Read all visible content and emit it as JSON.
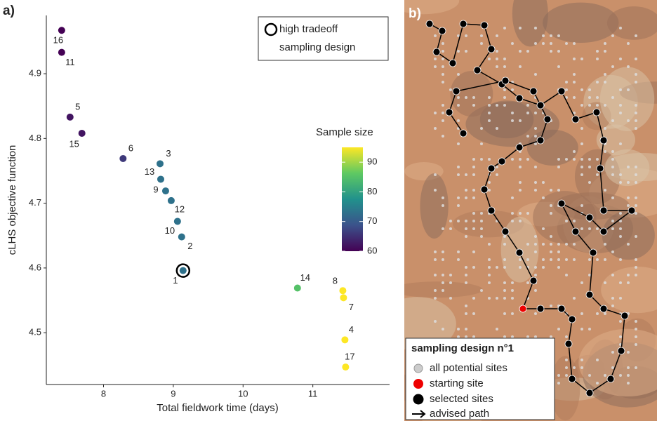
{
  "chart_data": {
    "type": "scatter",
    "panel_label": "a)",
    "x_label": "Total fieldwork time (days)",
    "y_label": "cLHS objective function",
    "labels": [
      "16",
      "11",
      "5",
      "15",
      "6",
      "3",
      "13",
      "9",
      "12",
      "10",
      "2",
      "1",
      "14",
      "8",
      "7",
      "4",
      "17"
    ],
    "x": [
      7.4,
      7.4,
      7.52,
      7.69,
      8.28,
      8.81,
      8.82,
      8.89,
      8.97,
      9.06,
      9.12,
      9.14,
      10.78,
      11.43,
      11.44,
      11.46,
      11.47
    ],
    "y": [
      4.967,
      4.933,
      4.833,
      4.808,
      4.769,
      4.761,
      4.737,
      4.719,
      4.704,
      4.672,
      4.648,
      4.596,
      4.569,
      4.565,
      4.554,
      4.489,
      4.447
    ],
    "sample_size": [
      60,
      60,
      62,
      62,
      66,
      73,
      73,
      73,
      73,
      73,
      73,
      73,
      85,
      95,
      95,
      95,
      95
    ],
    "color_title": "Sample size",
    "clim": [
      60,
      95
    ],
    "cticks": [
      60,
      70,
      80,
      90
    ],
    "colormap": [
      "#440154",
      "#3b528b",
      "#21918c",
      "#5ec962",
      "#fde725"
    ],
    "highlight": "1",
    "highlight_legend": [
      "high tradeoff",
      "sampling design"
    ],
    "xlim": [
      7.18,
      12.1
    ],
    "xticks": [
      8,
      9,
      10,
      11
    ],
    "ylim": [
      4.42,
      4.99
    ],
    "yticks": [
      4.5,
      4.6,
      4.7,
      4.8,
      4.9
    ],
    "grid": false
  },
  "map": {
    "panel_label": "b)",
    "legend_title": "sampling design n°1",
    "legend_items": [
      "all potential sites",
      "starting site",
      "selected sites",
      "advised path"
    ]
  }
}
